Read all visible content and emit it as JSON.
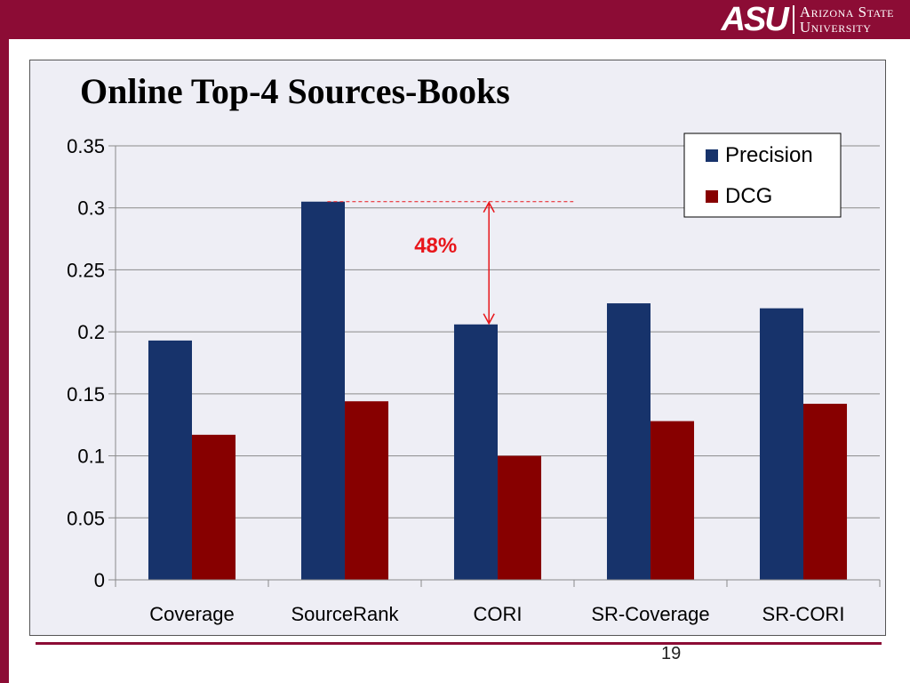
{
  "logo": {
    "mark": "ASU",
    "line1": "Arizona State",
    "line2": "University"
  },
  "page_number": "19",
  "colors": {
    "brand": "#8c0c35",
    "precision": "#17336b",
    "dcg": "#870000",
    "annotation": "#e8161b"
  },
  "chart_data": {
    "type": "bar",
    "title": "Online Top-4 Sources-Books",
    "xlabel": "",
    "ylabel": "",
    "categories": [
      "Coverage",
      "SourceRank",
      "CORI",
      "SR-Coverage",
      "SR-CORI"
    ],
    "series": [
      {
        "name": "Precision",
        "color": "#17336b",
        "values": [
          0.193,
          0.305,
          0.206,
          0.223,
          0.219
        ]
      },
      {
        "name": "DCG",
        "color": "#870000",
        "values": [
          0.117,
          0.144,
          0.1,
          0.128,
          0.142
        ]
      }
    ],
    "ylim": [
      0,
      0.35
    ],
    "yticks": [
      0,
      0.05,
      0.1,
      0.15,
      0.2,
      0.25,
      0.3,
      0.35
    ],
    "ytick_labels": [
      "0",
      "0.05",
      "0.1",
      "0.15",
      "0.2",
      "0.25",
      "0.3",
      "0.35"
    ],
    "grid": true,
    "legend_position": "top-right",
    "annotation": {
      "text": "48%",
      "from_value": 0.305,
      "to_value": 0.206
    }
  }
}
